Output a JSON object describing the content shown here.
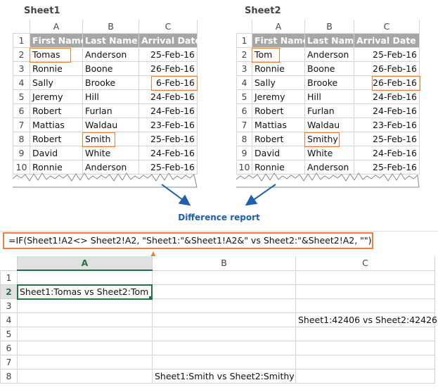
{
  "sheet1": {
    "title": "Sheet1",
    "columns": [
      "A",
      "B",
      "C"
    ],
    "header": [
      "First Name",
      "Last Name",
      "Arrival Date"
    ],
    "rows": [
      [
        "Tomas",
        "Anderson",
        "25-Feb-16"
      ],
      [
        "Ronnie",
        "Boone",
        "26-Feb-16"
      ],
      [
        "Sally",
        "Brooke",
        "6-Feb-16"
      ],
      [
        "Jeremy",
        "Hill",
        "24-Feb-16"
      ],
      [
        "Robert",
        "Furlan",
        "24-Feb-16"
      ],
      [
        "Mattias",
        "Waldau",
        "23-Feb-16"
      ],
      [
        "Robert",
        "Smith",
        "25-Feb-16"
      ],
      [
        "David",
        "White",
        "24-Feb-16"
      ],
      [
        "Ronnie",
        "Anderson",
        "25-Feb-16"
      ]
    ]
  },
  "sheet2": {
    "title": "Sheet2",
    "columns": [
      "A",
      "B",
      "C"
    ],
    "header": [
      "First Name",
      "Last Name",
      "Arrival Date"
    ],
    "rows": [
      [
        "Tom",
        "Anderson",
        "25-Feb-16"
      ],
      [
        "Ronnie",
        "Boone",
        "26-Feb-16"
      ],
      [
        "Sally",
        "Brooke",
        "26-Feb-16"
      ],
      [
        "Jeremy",
        "Hill",
        "24-Feb-16"
      ],
      [
        "Robert",
        "Furlan",
        "24-Feb-16"
      ],
      [
        "Mattias",
        "Waldau",
        "23-Feb-16"
      ],
      [
        "Robert",
        "Smithy",
        "25-Feb-16"
      ],
      [
        "David",
        "White",
        "24-Feb-16"
      ],
      [
        "Ronnie",
        "Anderson",
        "25-Feb-16"
      ]
    ]
  },
  "row_numbers": [
    "1",
    "2",
    "3",
    "4",
    "5",
    "6",
    "7",
    "8",
    "9",
    "10"
  ],
  "report_label": "Difference report",
  "formula": "=IF(Sheet1!A2<> Sheet2!A2, \"Sheet1:\"&Sheet1!A2&\" vs Sheet2:\"&Sheet2!A2, \"\")",
  "result": {
    "columns": [
      "A",
      "B",
      "C"
    ],
    "rows": [
      "1",
      "2",
      "3",
      "4",
      "5",
      "6",
      "7",
      "8"
    ],
    "cells": {
      "A2": "Sheet1:Tomas vs Sheet2:Tom",
      "C4": "Sheet1:42406 vs Sheet2:42426",
      "B8": "Sheet1:Smith vs Sheet2:Smithy"
    }
  },
  "colors": {
    "highlight": "#f07f3c",
    "arrow": "#1f5fae",
    "selection": "#217346",
    "header_fill": "#a6a6a6"
  }
}
